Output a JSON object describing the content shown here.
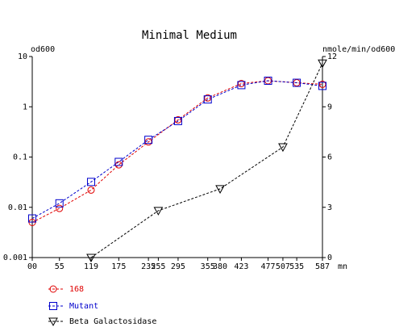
{
  "chart_data": {
    "type": "line",
    "title": "Minimal Medium",
    "left_axis": {
      "label": "od600",
      "scale": "log",
      "range": [
        0.001,
        10
      ],
      "ticks": [
        10,
        1,
        0.1,
        0.01,
        0.001
      ],
      "tick_labels": [
        "10",
        "1",
        "0.1",
        "0.01",
        "0.001"
      ]
    },
    "right_axis": {
      "label": "nmole/min/od600",
      "scale": "linear",
      "range": [
        0,
        12
      ],
      "ticks": [
        12,
        9,
        6,
        3,
        0
      ],
      "tick_labels": [
        "12",
        "9",
        "6",
        "3",
        "0"
      ]
    },
    "x_axis": {
      "unit": "mn",
      "range": [
        0,
        587
      ],
      "ticks": [
        0,
        55,
        119,
        175,
        235,
        255,
        295,
        355,
        380,
        423,
        477,
        507,
        535,
        587
      ],
      "tick_labels": [
        "00",
        "55",
        "119",
        "175",
        "235",
        "255",
        "295",
        "355",
        "380",
        "423",
        "477",
        "507",
        "535",
        "587"
      ]
    },
    "series": [
      {
        "name": "168",
        "axis": "left",
        "color": "#e00000",
        "marker": "circle",
        "x": [
          0,
          55,
          119,
          175,
          235,
          295,
          355,
          423,
          477,
          535,
          587
        ],
        "y": [
          0.005,
          0.0095,
          0.022,
          0.07,
          0.2,
          0.55,
          1.5,
          2.9,
          3.3,
          3.0,
          2.8
        ]
      },
      {
        "name": "Mutant",
        "axis": "left",
        "color": "#0000cc",
        "marker": "square",
        "x": [
          0,
          55,
          119,
          175,
          235,
          295,
          355,
          423,
          477,
          535,
          587
        ],
        "y": [
          0.006,
          0.012,
          0.032,
          0.08,
          0.22,
          0.52,
          1.4,
          2.7,
          3.3,
          3.0,
          2.6
        ]
      },
      {
        "name": "Beta Galactosidase",
        "axis": "right",
        "color": "#000000",
        "marker": "triangle-down",
        "x": [
          119,
          255,
          380,
          507,
          587
        ],
        "y": [
          0,
          2.8,
          4.1,
          6.6,
          11.6
        ]
      }
    ],
    "legend_position": "bottom-left",
    "grid": false
  }
}
